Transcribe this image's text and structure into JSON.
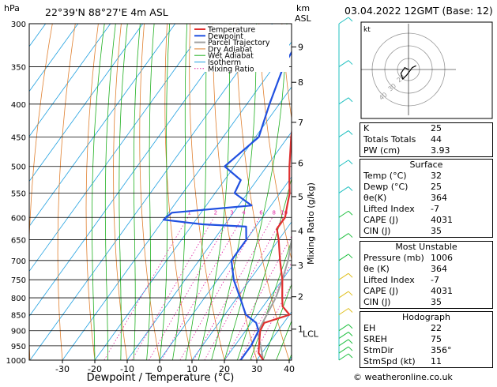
{
  "header": {
    "location": "22°39'N  88°27'E  4m  ASL",
    "hpa_label": "hPa",
    "km_label": "km",
    "asl_label": "ASL",
    "datetime": "03.04.2022  12GMT  (Base: 12)"
  },
  "axes": {
    "x_label": "Dewpoint / Temperature (°C)",
    "mixing_ratio_label": "Mixing Ratio (g/kg)",
    "lcl_label": "LCL"
  },
  "legend": [
    "Temperature",
    "Dewpoint",
    "Parcel Trajectory",
    "Dry Adiabat",
    "Wet Adiabat",
    "Isotherm",
    "Mixing Ratio"
  ],
  "colors": {
    "temperature": "#e03030",
    "dewpoint": "#2050e0",
    "parcel": "#a0a0a0",
    "dry_adiabat": "#e08030",
    "wet_adiabat": "#20b020",
    "isotherm": "#20a0e0",
    "mixing_ratio": "#e020a0",
    "wind": "#20c0c0"
  },
  "chart_data": {
    "type": "skewt",
    "pressure_levels": [
      300,
      350,
      400,
      450,
      500,
      550,
      600,
      650,
      700,
      750,
      800,
      850,
      900,
      950,
      1000
    ],
    "temp_ticks": [
      -30,
      -20,
      -10,
      0,
      10,
      20,
      30,
      40
    ],
    "height_km_ticks": [
      {
        "km": "9",
        "p": 326
      },
      {
        "km": "8",
        "p": 370
      },
      {
        "km": "7",
        "p": 427
      },
      {
        "km": "6",
        "p": 494
      },
      {
        "km": "5",
        "p": 557
      },
      {
        "km": "4",
        "p": 630
      },
      {
        "km": "3",
        "p": 712
      },
      {
        "km": "2",
        "p": 797
      },
      {
        "km": "1",
        "p": 895
      }
    ],
    "lcl_pressure": 904,
    "mixing_ratio_values": [
      1,
      2,
      3,
      4,
      6,
      8,
      10,
      15,
      20,
      25
    ],
    "temperature": [
      [
        1000,
        32
      ],
      [
        975,
        29
      ],
      [
        950,
        27.5
      ],
      [
        925,
        26
      ],
      [
        900,
        24.5
      ],
      [
        875,
        24
      ],
      [
        850,
        30
      ],
      [
        825,
        26
      ],
      [
        800,
        24
      ],
      [
        750,
        20
      ],
      [
        700,
        15
      ],
      [
        650,
        10
      ],
      [
        625,
        7
      ],
      [
        600,
        7
      ],
      [
        575,
        5
      ],
      [
        550,
        3
      ],
      [
        525,
        0
      ],
      [
        500,
        -3
      ],
      [
        450,
        -9
      ],
      [
        400,
        -15
      ],
      [
        350,
        -23
      ],
      [
        300,
        -32
      ]
    ],
    "dewpoint": [
      [
        1000,
        25
      ],
      [
        975,
        25
      ],
      [
        950,
        25
      ],
      [
        900,
        24
      ],
      [
        875,
        21.5
      ],
      [
        850,
        16.5
      ],
      [
        800,
        11
      ],
      [
        750,
        5
      ],
      [
        700,
        0
      ],
      [
        675,
        0
      ],
      [
        650,
        0
      ],
      [
        640,
        -1
      ],
      [
        620,
        -3
      ],
      [
        615,
        -17
      ],
      [
        605,
        -30
      ],
      [
        590,
        -29
      ],
      [
        575,
        -6
      ],
      [
        550,
        -14
      ],
      [
        525,
        -15
      ],
      [
        500,
        -23
      ],
      [
        450,
        -19
      ],
      [
        400,
        -23
      ],
      [
        350,
        -27
      ],
      [
        325,
        -28
      ],
      [
        300,
        -32
      ]
    ],
    "parcel": [
      [
        1000,
        32
      ],
      [
        950,
        28
      ],
      [
        904,
        24
      ],
      [
        850,
        23
      ],
      [
        800,
        22
      ],
      [
        750,
        20
      ],
      [
        700,
        17.5
      ],
      [
        650,
        14
      ],
      [
        600,
        10
      ],
      [
        550,
        6
      ],
      [
        500,
        1
      ],
      [
        450,
        -4
      ],
      [
        400,
        -10
      ],
      [
        350,
        -17
      ]
    ],
    "hodograph": {
      "rings": [
        "20",
        "30",
        "40"
      ],
      "label": "kt",
      "trace": [
        [
          0,
          0
        ],
        [
          -2,
          -1
        ],
        [
          -4,
          2
        ],
        [
          -3,
          5
        ],
        [
          -1,
          3
        ],
        [
          2,
          -1
        ],
        [
          4,
          -2
        ]
      ]
    }
  },
  "indices": {
    "top": [
      {
        "label": "K",
        "value": "25"
      },
      {
        "label": "Totals Totals",
        "value": "44"
      },
      {
        "label": "PW (cm)",
        "value": "3.93"
      }
    ],
    "surface_title": "Surface",
    "surface": [
      {
        "label": "Temp (°C)",
        "value": "32"
      },
      {
        "label": "Dewp (°C)",
        "value": "25"
      },
      {
        "label": "θe(K)",
        "value": "364"
      },
      {
        "label": "Lifted Index",
        "value": "-7"
      },
      {
        "label": "CAPE (J)",
        "value": "4031"
      },
      {
        "label": "CIN (J)",
        "value": "35"
      }
    ],
    "unstable_title": "Most Unstable",
    "unstable": [
      {
        "label": "Pressure (mb)",
        "value": "1006"
      },
      {
        "label": "θe (K)",
        "value": "364"
      },
      {
        "label": "Lifted Index",
        "value": "-7"
      },
      {
        "label": "CAPE (J)",
        "value": "4031"
      },
      {
        "label": "CIN (J)",
        "value": "35"
      }
    ],
    "hodo_title": "Hodograph",
    "hodo": [
      {
        "label": "EH",
        "value": "22"
      },
      {
        "label": "SREH",
        "value": "75"
      },
      {
        "label": "StmDir",
        "value": "356°"
      },
      {
        "label": "StmSpd (kt)",
        "value": "11"
      }
    ]
  },
  "credit": "© weatheronline.co.uk"
}
